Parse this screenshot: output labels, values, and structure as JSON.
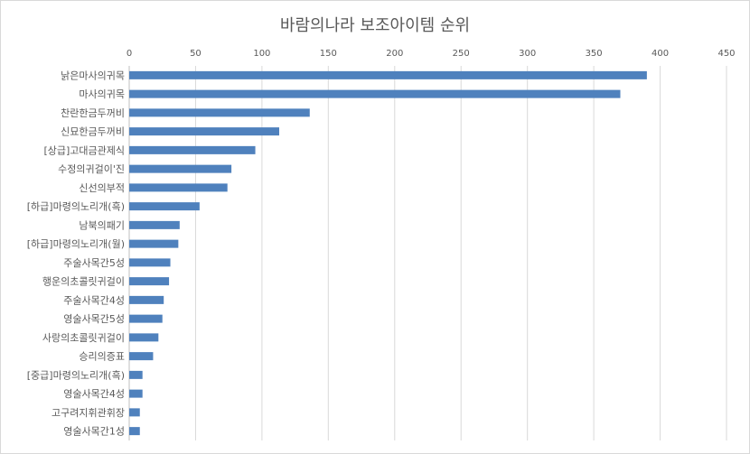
{
  "chart_data": {
    "type": "bar",
    "orientation": "horizontal",
    "title": "바람의나라 보조아이템 순위",
    "xlabel": "",
    "ylabel": "",
    "xlim": [
      0,
      450
    ],
    "x_ticks": [
      0,
      50,
      100,
      150,
      200,
      250,
      300,
      350,
      400,
      450
    ],
    "x_axis_position": "top",
    "grid": true,
    "legend": "none",
    "bar_color": "#4f81bd",
    "categories": [
      "낡은마사의귀목",
      "마사의귀목",
      "찬란한금두꺼비",
      "신묘한금두꺼비",
      "[상급]고대금관제식",
      "수정의귀걸이'진",
      "신선의부적",
      "[하급]마령의노리개(흑)",
      "남북의패기",
      "[하급]마령의노리개(월)",
      "주술사목간5성",
      "행운의초콜릿귀걸이",
      "주술사목간4성",
      "영술사목간5성",
      "사랑의초콜릿귀걸이",
      "승리의증표",
      "[중급]마령의노리개(흑)",
      "영술사목간4성",
      "고구려지휘관휘장",
      "영술사목간1성"
    ],
    "values": [
      390,
      370,
      136,
      113,
      95,
      77,
      74,
      53,
      38,
      37,
      31,
      30,
      26,
      25,
      22,
      18,
      10,
      10,
      8,
      8
    ]
  }
}
